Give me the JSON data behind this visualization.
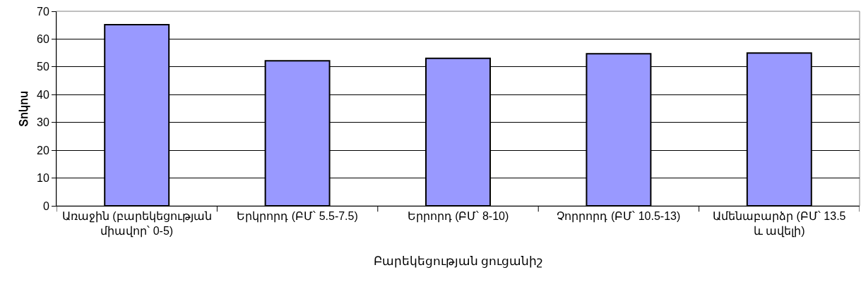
{
  "chart_data": {
    "type": "bar",
    "categories": [
      "Առաջին (բարեկեցության միավոր՝ 0-5)",
      "Երկրորդ (ԲՄ՝ 5.5-7.5)",
      "Երրորդ (ԲՄ՝ 8-10)",
      "Չորրորդ (ԲՄ՝ 10.5-13)",
      "Ամենաբարձր (ԲՄ՝ 13.5 և ավելի)"
    ],
    "values": [
      65.2,
      52.2,
      53.1,
      54.7,
      55.0
    ],
    "color": "#9999ff",
    "xlabel": "Բարեկեցության ցուցանիշ",
    "ylabel": "Տոկոս",
    "ylim": [
      0,
      70
    ],
    "yticks": [
      0,
      10,
      20,
      30,
      40,
      50,
      60,
      70
    ],
    "grid": "y"
  }
}
